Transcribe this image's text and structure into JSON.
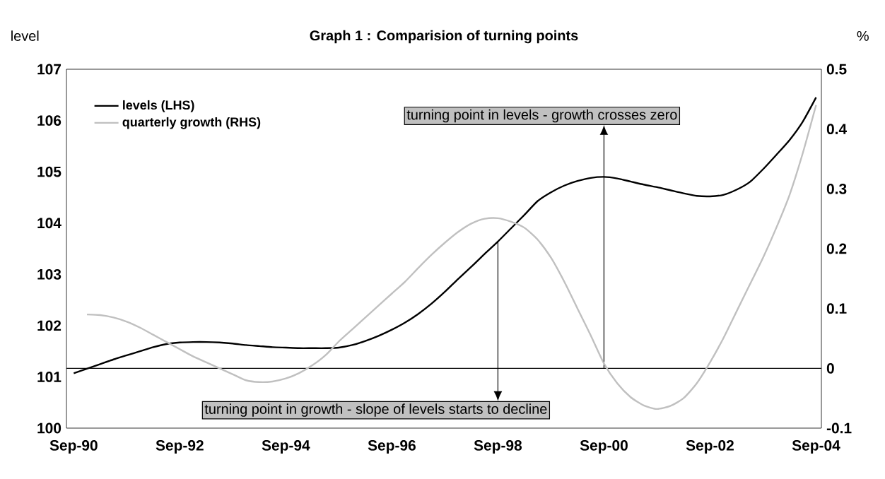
{
  "chart_data": {
    "type": "line",
    "title": "Graph 1 : Comparision of turning points",
    "ylabel": "level",
    "y2label": "%",
    "categories": [
      "Sep-90",
      null,
      null,
      null,
      null,
      null,
      null,
      null,
      "Sep-92",
      null,
      null,
      null,
      null,
      null,
      null,
      null,
      "Sep-94",
      null,
      null,
      null,
      null,
      null,
      null,
      null,
      "Sep-96",
      null,
      null,
      null,
      null,
      null,
      null,
      null,
      "Sep-98",
      null,
      null,
      null,
      null,
      null,
      null,
      null,
      "Sep-00",
      null,
      null,
      null,
      null,
      null,
      null,
      null,
      "Sep-02",
      null,
      null,
      null,
      null,
      null,
      null,
      null,
      "Sep-04"
    ],
    "ylim": [
      100,
      107
    ],
    "yticks": [
      100,
      101,
      102,
      103,
      104,
      105,
      106,
      107
    ],
    "y2lim": [
      -0.1,
      0.5
    ],
    "y2ticks": [
      -0.1,
      0,
      0.1,
      0.2,
      0.3,
      0.4,
      0.5
    ],
    "legend": "top left",
    "series": [
      {
        "name": "levels (LHS)",
        "color": "#000000",
        "values": [
          101.07,
          101.16,
          101.25,
          101.34,
          101.42,
          101.5,
          101.58,
          101.64,
          101.67,
          101.68,
          101.68,
          101.67,
          101.65,
          101.62,
          101.6,
          101.58,
          101.57,
          101.56,
          101.56,
          101.56,
          101.57,
          101.62,
          101.7,
          101.8,
          101.92,
          102.06,
          102.23,
          102.43,
          102.66,
          102.91,
          103.15,
          103.4,
          103.64,
          103.9,
          104.16,
          104.43,
          104.6,
          104.73,
          104.82,
          104.88,
          104.9,
          104.87,
          104.81,
          104.75,
          104.7,
          104.64,
          104.58,
          104.53,
          104.52,
          104.55,
          104.65,
          104.8,
          105.05,
          105.33,
          105.62,
          105.98,
          106.45
        ]
      },
      {
        "name": "quarterly growth (RHS)",
        "color": "#c0c0c0",
        "axis": "y2",
        "values": [
          null,
          0.09,
          0.089,
          0.085,
          0.078,
          0.068,
          0.056,
          0.044,
          0.032,
          0.02,
          0.01,
          0.0,
          -0.01,
          -0.02,
          -0.023,
          -0.022,
          -0.017,
          -0.008,
          0.005,
          0.022,
          0.045,
          0.065,
          0.085,
          0.105,
          0.125,
          0.145,
          0.168,
          0.19,
          0.21,
          0.228,
          0.242,
          0.25,
          0.251,
          0.245,
          0.235,
          0.215,
          0.185,
          0.145,
          0.1,
          0.055,
          0.008,
          -0.025,
          -0.048,
          -0.062,
          -0.068,
          -0.063,
          -0.05,
          -0.025,
          0.01,
          0.05,
          0.095,
          0.14,
          0.185,
          0.235,
          0.29,
          0.36,
          0.44
        ]
      }
    ],
    "ref_lines": [
      {
        "axis": "y2",
        "value": 0
      }
    ],
    "annotations": [
      "turning point in levels - growth crosses zero",
      {
        "text": "turning point in growth - slope of levels starts to decline",
        "x": "Sep-98",
        "y": 103.64
      }
    ]
  }
}
